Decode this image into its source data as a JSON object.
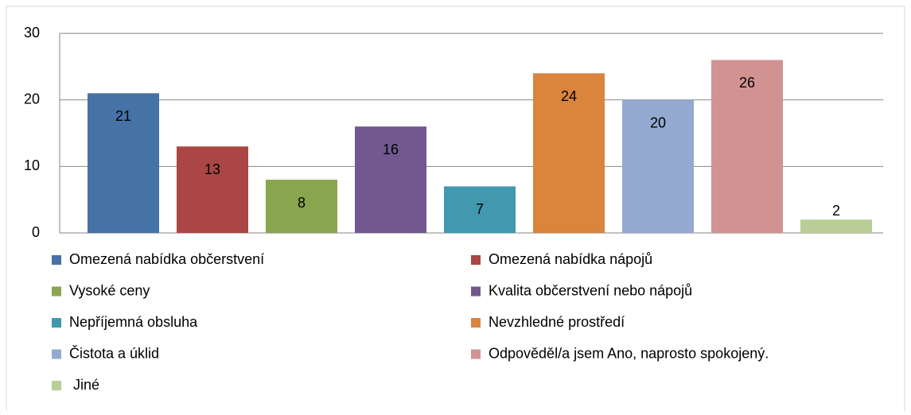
{
  "chart_data": {
    "type": "bar",
    "series": [
      {
        "name": "Omezená nabídka občerstvení",
        "color": "#4572a7",
        "values": [
          21
        ]
      },
      {
        "name": "Omezená nabídka nápojů",
        "color": "#aa4643",
        "values": [
          13
        ]
      },
      {
        "name": "Vysoké ceny",
        "color": "#89a54e",
        "values": [
          8
        ]
      },
      {
        "name": "Kvalita občerstvení nebo nápojů",
        "color": "#71588f",
        "values": [
          16
        ]
      },
      {
        "name": "Nepříjemná obsluha",
        "color": "#4198af",
        "values": [
          7
        ]
      },
      {
        "name": "Nevzhledné prostředí",
        "color": "#db843d",
        "values": [
          24
        ]
      },
      {
        "name": "Čistota a úklid",
        "color": "#93a9cf",
        "values": [
          20
        ]
      },
      {
        "name": "Odpověděl/a jsem Ano, naprosto spokojený.",
        "color": "#d19392",
        "values": [
          26
        ]
      },
      {
        "name": "Jiné",
        "color": "#b9cd96",
        "values": [
          2
        ]
      }
    ],
    "ylim": [
      0,
      30
    ],
    "yticks": [
      0,
      10,
      20,
      30
    ],
    "grid": true,
    "legend": "bottom"
  }
}
